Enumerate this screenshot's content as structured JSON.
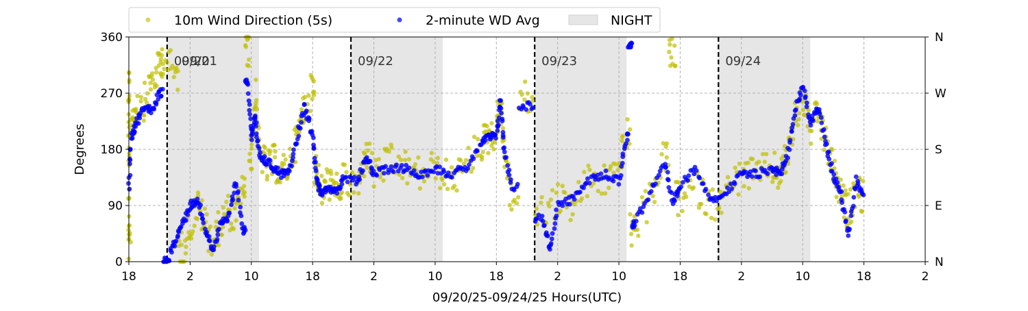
{
  "chart_data": {
    "type": "scatter",
    "xlabel": "09/20/25-09/24/25  Hours(UTC)",
    "ylabel": "Degrees",
    "ylim": [
      0,
      360
    ],
    "yticks": [
      0,
      90,
      180,
      270,
      360
    ],
    "right_axis_labels": [
      "N",
      "E",
      "S",
      "W",
      "N"
    ],
    "x_start": "2025-09-20 18:00",
    "x_end": "2025-09-25 02:00",
    "x_tick_labels": [
      {
        "t": "2025-09-20 18:00",
        "label": "18"
      },
      {
        "t": "2025-09-21 02:00",
        "label": "2"
      },
      {
        "t": "2025-09-21 10:00",
        "label": "10"
      },
      {
        "t": "2025-09-21 18:00",
        "label": "18"
      },
      {
        "t": "2025-09-22 02:00",
        "label": "2"
      },
      {
        "t": "2025-09-22 10:00",
        "label": "10"
      },
      {
        "t": "2025-09-22 18:00",
        "label": "18"
      },
      {
        "t": "2025-09-23 02:00",
        "label": "2"
      },
      {
        "t": "2025-09-23 10:00",
        "label": "10"
      },
      {
        "t": "2025-09-23 18:00",
        "label": "18"
      },
      {
        "t": "2025-09-24 02:00",
        "label": "2"
      },
      {
        "t": "2025-09-24 10:00",
        "label": "10"
      },
      {
        "t": "2025-09-24 18:00",
        "label": "18"
      },
      {
        "t": "2025-09-25 02:00",
        "label": "2"
      }
    ],
    "day_boundaries": [
      {
        "t": "2025-09-20 23:00",
        "label": "09/20"
      },
      {
        "t": "2025-09-21 00:00",
        "label": "09/21"
      },
      {
        "t": "2025-09-21 23:00",
        "label": "09/22"
      },
      {
        "t": "2025-09-22 23:00",
        "label": "09/23"
      },
      {
        "t": "2025-09-23 23:00",
        "label": "09/24"
      }
    ],
    "night_periods": [
      {
        "start": "2025-09-20 23:00",
        "end": "2025-09-21 11:00"
      },
      {
        "start": "2025-09-21 23:00",
        "end": "2025-09-22 11:00"
      },
      {
        "start": "2025-09-22 23:00",
        "end": "2025-09-23 11:00"
      },
      {
        "start": "2025-09-23 23:00",
        "end": "2025-09-24 11:00"
      }
    ],
    "legend": {
      "placement": "top-left, above plot"
    },
    "series": [
      {
        "name": "10m Wind Direction (5s)",
        "color": "#bfbf00",
        "marker": "dot",
        "alpha": 0.7,
        "points": [
          [
            "2025-09-20 18:00",
            90
          ],
          [
            "2025-09-20 18:00",
            200
          ],
          [
            "2025-09-20 18:00",
            280
          ],
          [
            "2025-09-20 18:00",
            30
          ],
          [
            "2025-09-20 18:30",
            230
          ],
          [
            "2025-09-20 19:00",
            250
          ],
          [
            "2025-09-20 20:00",
            255
          ],
          [
            "2025-09-20 21:00",
            290
          ],
          [
            "2025-09-20 22:00",
            310
          ],
          [
            "2025-09-20 22:30",
            330
          ],
          [
            "2025-09-21 00:00",
            300
          ],
          [
            "2025-09-21 01:00",
            20
          ],
          [
            "2025-09-21 02:00",
            60
          ],
          [
            "2025-09-21 03:00",
            90
          ],
          [
            "2025-09-21 04:00",
            60
          ],
          [
            "2025-09-21 05:00",
            30
          ],
          [
            "2025-09-21 06:00",
            60
          ],
          [
            "2025-09-21 07:00",
            80
          ],
          [
            "2025-09-21 08:00",
            70
          ],
          [
            "2025-09-21 09:00",
            120
          ],
          [
            "2025-09-21 09:30",
            340
          ],
          [
            "2025-09-21 10:00",
            170
          ],
          [
            "2025-09-21 10:30",
            270
          ],
          [
            "2025-09-21 11:00",
            180
          ],
          [
            "2025-09-21 12:00",
            150
          ],
          [
            "2025-09-21 13:00",
            160
          ],
          [
            "2025-09-21 14:00",
            140
          ],
          [
            "2025-09-21 15:00",
            160
          ],
          [
            "2025-09-21 16:00",
            200
          ],
          [
            "2025-09-21 17:00",
            250
          ],
          [
            "2025-09-21 18:00",
            280
          ],
          [
            "2025-09-21 18:30",
            150
          ],
          [
            "2025-09-21 19:00",
            110
          ],
          [
            "2025-09-21 20:00",
            130
          ],
          [
            "2025-09-21 21:00",
            110
          ],
          [
            "2025-09-21 22:00",
            130
          ],
          [
            "2025-09-22 00:00",
            120
          ],
          [
            "2025-09-22 01:00",
            180
          ],
          [
            "2025-09-22 02:00",
            140
          ],
          [
            "2025-09-22 04:00",
            160
          ],
          [
            "2025-09-22 06:00",
            150
          ],
          [
            "2025-09-22 08:00",
            140
          ],
          [
            "2025-09-22 10:00",
            150
          ],
          [
            "2025-09-22 12:00",
            130
          ],
          [
            "2025-09-22 14:00",
            150
          ],
          [
            "2025-09-22 16:00",
            190
          ],
          [
            "2025-09-22 17:00",
            200
          ],
          [
            "2025-09-22 18:00",
            210
          ],
          [
            "2025-09-22 18:30",
            260
          ],
          [
            "2025-09-22 19:00",
            180
          ],
          [
            "2025-09-22 20:00",
            100
          ],
          [
            "2025-09-22 22:00",
            260
          ],
          [
            "2025-09-23 00:00",
            80
          ],
          [
            "2025-09-23 02:00",
            100
          ],
          [
            "2025-09-23 04:00",
            90
          ],
          [
            "2025-09-23 06:00",
            130
          ],
          [
            "2025-09-23 08:00",
            130
          ],
          [
            "2025-09-23 10:00",
            150
          ],
          [
            "2025-09-23 11:00",
            200
          ],
          [
            "2025-09-23 12:00",
            50
          ],
          [
            "2025-09-23 14:00",
            100
          ],
          [
            "2025-09-23 16:00",
            170
          ],
          [
            "2025-09-23 17:00",
            330
          ],
          [
            "2025-09-23 18:00",
            100
          ],
          [
            "2025-09-23 20:00",
            120
          ],
          [
            "2025-09-23 22:00",
            90
          ],
          [
            "2025-09-24 00:00",
            110
          ],
          [
            "2025-09-24 02:00",
            140
          ],
          [
            "2025-09-24 04:00",
            140
          ],
          [
            "2025-09-24 06:00",
            150
          ],
          [
            "2025-09-24 07:00",
            140
          ],
          [
            "2025-09-24 08:00",
            170
          ],
          [
            "2025-09-24 09:00",
            230
          ],
          [
            "2025-09-24 10:00",
            270
          ],
          [
            "2025-09-24 11:00",
            210
          ],
          [
            "2025-09-24 12:00",
            240
          ],
          [
            "2025-09-24 13:00",
            190
          ],
          [
            "2025-09-24 14:00",
            150
          ],
          [
            "2025-09-24 15:00",
            100
          ],
          [
            "2025-09-24 16:00",
            80
          ],
          [
            "2025-09-24 17:00",
            120
          ],
          [
            "2025-09-24 18:00",
            100
          ]
        ]
      },
      {
        "name": "2-minute WD Avg",
        "color": "#0000ff",
        "marker": "dot",
        "alpha": 0.8,
        "points": [
          [
            "2025-09-20 18:00",
            120
          ],
          [
            "2025-09-20 18:20",
            200
          ],
          [
            "2025-09-20 19:00",
            220
          ],
          [
            "2025-09-20 20:00",
            250
          ],
          [
            "2025-09-20 21:00",
            240
          ],
          [
            "2025-09-20 22:00",
            270
          ],
          [
            "2025-09-20 23:00",
            0
          ],
          [
            "2025-09-21 00:00",
            30
          ],
          [
            "2025-09-21 01:00",
            60
          ],
          [
            "2025-09-21 02:00",
            90
          ],
          [
            "2025-09-21 03:00",
            100
          ],
          [
            "2025-09-21 04:00",
            50
          ],
          [
            "2025-09-21 05:00",
            20
          ],
          [
            "2025-09-21 06:00",
            60
          ],
          [
            "2025-09-21 07:00",
            70
          ],
          [
            "2025-09-21 08:00",
            130
          ],
          [
            "2025-09-21 09:00",
            50
          ],
          [
            "2025-09-21 09:30",
            290
          ],
          [
            "2025-09-21 10:00",
            200
          ],
          [
            "2025-09-21 10:30",
            230
          ],
          [
            "2025-09-21 11:00",
            170
          ],
          [
            "2025-09-21 12:00",
            160
          ],
          [
            "2025-09-21 13:00",
            150
          ],
          [
            "2025-09-21 14:00",
            140
          ],
          [
            "2025-09-21 15:00",
            150
          ],
          [
            "2025-09-21 16:00",
            200
          ],
          [
            "2025-09-21 17:00",
            250
          ],
          [
            "2025-09-21 18:00",
            200
          ],
          [
            "2025-09-21 18:30",
            140
          ],
          [
            "2025-09-21 19:00",
            110
          ],
          [
            "2025-09-21 20:00",
            120
          ],
          [
            "2025-09-21 21:00",
            110
          ],
          [
            "2025-09-21 22:00",
            130
          ],
          [
            "2025-09-22 00:00",
            130
          ],
          [
            "2025-09-22 01:00",
            170
          ],
          [
            "2025-09-22 02:00",
            140
          ],
          [
            "2025-09-22 04:00",
            150
          ],
          [
            "2025-09-22 06:00",
            150
          ],
          [
            "2025-09-22 08:00",
            140
          ],
          [
            "2025-09-22 10:00",
            150
          ],
          [
            "2025-09-22 12:00",
            140
          ],
          [
            "2025-09-22 14:00",
            150
          ],
          [
            "2025-09-22 16:00",
            190
          ],
          [
            "2025-09-22 17:00",
            200
          ],
          [
            "2025-09-22 18:00",
            200
          ],
          [
            "2025-09-22 18:30",
            260
          ],
          [
            "2025-09-22 19:00",
            180
          ],
          [
            "2025-09-22 20:00",
            120
          ],
          [
            "2025-09-22 22:00",
            250
          ],
          [
            "2025-09-23 00:00",
            70
          ],
          [
            "2025-09-23 01:00",
            20
          ],
          [
            "2025-09-23 02:00",
            90
          ],
          [
            "2025-09-23 04:00",
            100
          ],
          [
            "2025-09-23 06:00",
            130
          ],
          [
            "2025-09-23 08:00",
            140
          ],
          [
            "2025-09-23 10:00",
            130
          ],
          [
            "2025-09-23 11:00",
            200
          ],
          [
            "2025-09-23 11:30",
            350
          ],
          [
            "2025-09-23 12:00",
            60
          ],
          [
            "2025-09-23 14:00",
            110
          ],
          [
            "2025-09-23 16:00",
            160
          ],
          [
            "2025-09-23 17:00",
            90
          ],
          [
            "2025-09-23 18:00",
            120
          ],
          [
            "2025-09-23 20:00",
            150
          ],
          [
            "2025-09-23 22:00",
            100
          ],
          [
            "2025-09-24 00:00",
            110
          ],
          [
            "2025-09-24 02:00",
            140
          ],
          [
            "2025-09-24 04:00",
            140
          ],
          [
            "2025-09-24 06:00",
            150
          ],
          [
            "2025-09-24 07:00",
            140
          ],
          [
            "2025-09-24 08:00",
            170
          ],
          [
            "2025-09-24 09:00",
            240
          ],
          [
            "2025-09-24 10:00",
            280
          ],
          [
            "2025-09-24 11:00",
            220
          ],
          [
            "2025-09-24 12:00",
            250
          ],
          [
            "2025-09-24 13:00",
            190
          ],
          [
            "2025-09-24 14:00",
            140
          ],
          [
            "2025-09-24 15:00",
            110
          ],
          [
            "2025-09-24 16:00",
            40
          ],
          [
            "2025-09-24 17:00",
            130
          ],
          [
            "2025-09-24 18:00",
            110
          ]
        ]
      },
      {
        "name": "NIGHT",
        "color": "#e6e6e6",
        "marker": "shaded-span"
      }
    ]
  }
}
